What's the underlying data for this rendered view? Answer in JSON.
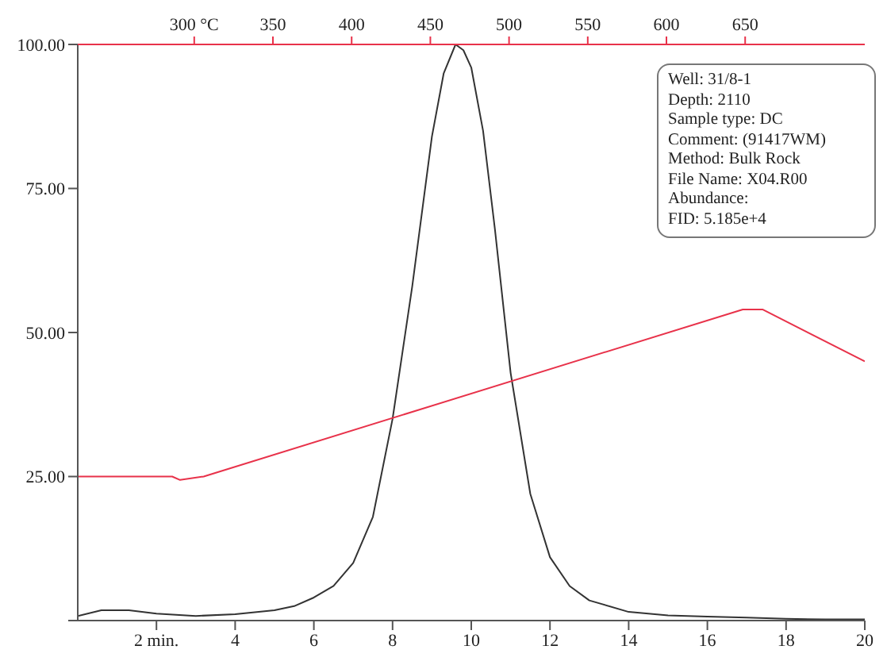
{
  "chart_data": {
    "type": "line",
    "x": [
      0,
      0.6,
      1.3,
      2,
      3,
      4,
      5,
      5.5,
      6,
      6.5,
      7,
      7.5,
      8,
      8.5,
      9,
      9.3,
      9.6,
      9.8,
      10,
      10.3,
      10.6,
      11,
      11.5,
      12,
      12.5,
      13,
      14,
      15,
      16,
      17,
      18,
      19,
      20
    ],
    "xlim": [
      0,
      20
    ],
    "xticks": [
      {
        "value": 2,
        "label": "2 min."
      },
      4,
      6,
      8,
      10,
      12,
      14,
      16,
      18,
      20
    ],
    "x2lim": [
      226,
      726
    ],
    "x2ticks": [
      {
        "value": 300,
        "label": "300 °C"
      },
      350,
      400,
      450,
      500,
      550,
      600,
      650
    ],
    "ylim": [
      0,
      100
    ],
    "yticks": [
      {
        "value": 0,
        "label": null
      },
      {
        "value": 25,
        "label": "25.00"
      },
      {
        "value": 50,
        "label": "50.00"
      },
      {
        "value": 75,
        "label": "75.00"
      },
      {
        "value": 100,
        "label": "100.00"
      }
    ],
    "series": [
      {
        "color": "#333333",
        "values": [
          0.8,
          1.8,
          1.8,
          1.2,
          0.8,
          1.1,
          1.8,
          2.5,
          4,
          6,
          10,
          18,
          35,
          58,
          84,
          95,
          100,
          99,
          96,
          85,
          68,
          43,
          22,
          11,
          6,
          3.5,
          1.5,
          0.9,
          0.7,
          0.5,
          0.3,
          0.2,
          0.2
        ]
      },
      {
        "color": "#e8324a",
        "x": [
          0,
          2.4,
          2.6,
          3.2,
          16.9,
          17.4,
          20
        ],
        "values": [
          25,
          25,
          24.4,
          25,
          54,
          54,
          45
        ]
      }
    ],
    "marker": "none",
    "line_style": "solid",
    "annotations": [
      "Well: 31/8-1",
      "Depth: 2110",
      "Sample type: DC",
      "Comment: (91417WM)",
      "Method: Bulk Rock",
      "File Name: X04.R00",
      "Abundance:",
      "FID: 5.185e+4"
    ]
  }
}
